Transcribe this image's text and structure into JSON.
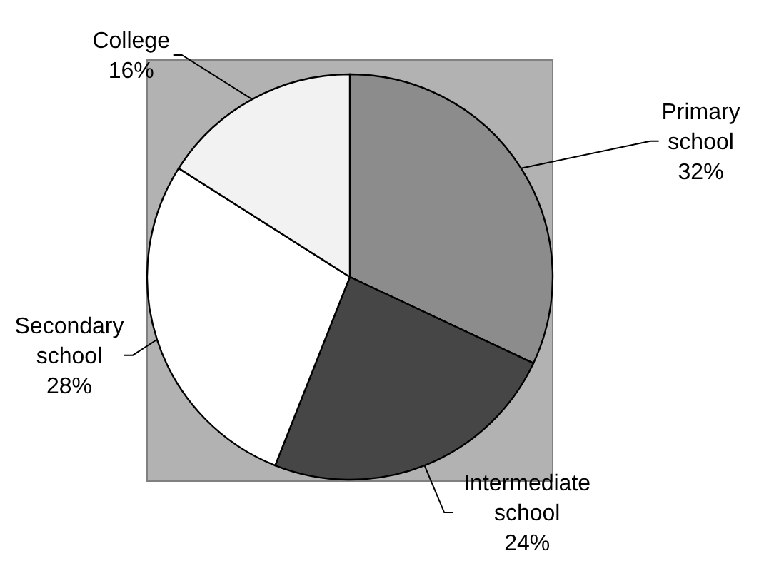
{
  "chart_data": {
    "type": "pie",
    "categories": [
      "Primary school",
      "Intermediate school",
      "Secondary school",
      "College"
    ],
    "values": [
      32,
      24,
      28,
      16
    ],
    "colors": [
      "#8c8c8c",
      "#464646",
      "#ffffff",
      "#f2f2f2"
    ],
    "value_labels": [
      "32%",
      "24%",
      "28%",
      "16%"
    ]
  }
}
